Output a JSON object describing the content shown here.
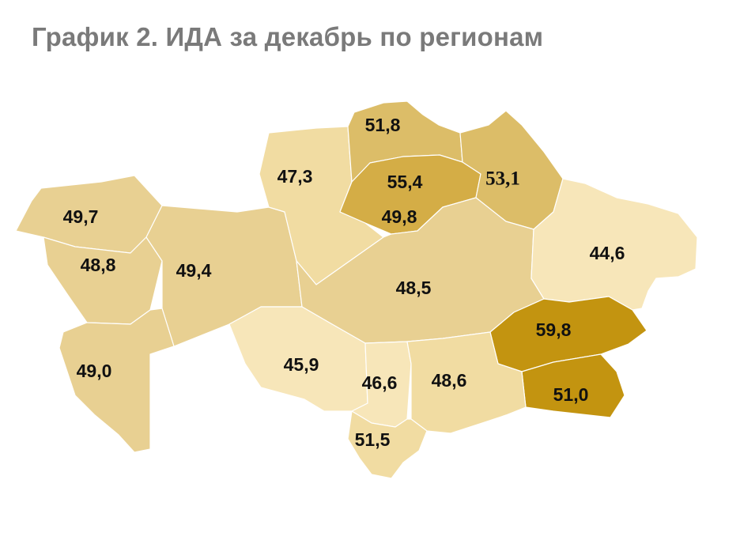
{
  "title": "График 2. ИДА за декабрь по регионам",
  "colors": {
    "very_light": "#f7e6b9",
    "light": "#f1dca2",
    "medium": "#e8d092",
    "medium_dark": "#dcbd68",
    "dark": "#d4ad46",
    "darkest": "#c39410"
  },
  "chart_data": {
    "type": "choropleth",
    "title": "График 2. ИДА за декабрь по регионам",
    "values": [
      {
        "key": "north_1",
        "value": "51,8"
      },
      {
        "key": "north_center",
        "value": "55,4"
      },
      {
        "key": "northeast",
        "value": "53,1"
      },
      {
        "key": "north_center_south",
        "value": "49,8"
      },
      {
        "key": "north_west_center",
        "value": "47,3"
      },
      {
        "key": "west_1",
        "value": "49,7"
      },
      {
        "key": "west_2",
        "value": "48,8"
      },
      {
        "key": "west_3",
        "value": "49,4"
      },
      {
        "key": "southwest",
        "value": "49,0"
      },
      {
        "key": "center",
        "value": "48,5"
      },
      {
        "key": "east",
        "value": "44,6"
      },
      {
        "key": "southeast_1",
        "value": "59,8"
      },
      {
        "key": "southeast_2",
        "value": "51,0"
      },
      {
        "key": "south_1",
        "value": "45,9"
      },
      {
        "key": "south_2",
        "value": "46,6"
      },
      {
        "key": "south_3",
        "value": "48,6"
      },
      {
        "key": "south_4",
        "value": "51,5"
      }
    ]
  }
}
